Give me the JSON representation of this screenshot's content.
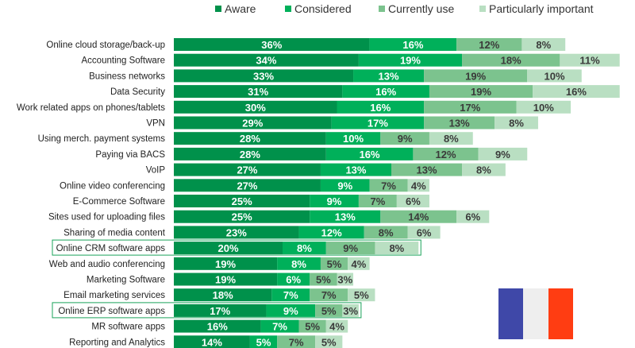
{
  "chart_data": {
    "type": "bar",
    "orientation": "horizontal",
    "stacked": true,
    "categories": [
      "Online cloud storage/back-up",
      "Accounting Software",
      "Business networks",
      "Data Security",
      "Work related apps on phones/tablets",
      "VPN",
      "Using merch. payment systems",
      "Paying via BACS",
      "VoIP",
      "Online video conferencing",
      "E-Commerce Software",
      "Sites used for uploading files",
      "Sharing of media content",
      "Online CRM software apps",
      "Web and audio conferencing",
      "Marketing Software",
      "Email marketing services",
      "Online ERP software apps",
      "MR software apps",
      "Reporting and Analytics"
    ],
    "series": [
      {
        "name": "Aware",
        "color": "#00914b",
        "values": [
          36,
          34,
          33,
          31,
          30,
          29,
          28,
          28,
          27,
          27,
          25,
          25,
          23,
          20,
          19,
          19,
          18,
          17,
          16,
          14
        ]
      },
      {
        "name": "Considered",
        "color": "#00b05a",
        "values": [
          16,
          19,
          13,
          16,
          16,
          17,
          10,
          16,
          13,
          9,
          9,
          13,
          12,
          8,
          8,
          6,
          7,
          9,
          7,
          5
        ]
      },
      {
        "name": "Currently use",
        "color": "#7cc38e",
        "values": [
          12,
          18,
          19,
          19,
          17,
          13,
          9,
          12,
          13,
          7,
          7,
          14,
          8,
          9,
          5,
          5,
          7,
          5,
          5,
          7
        ]
      },
      {
        "name": "Particularly important",
        "color": "#b9dfc2",
        "values": [
          8,
          11,
          10,
          16,
          10,
          8,
          8,
          9,
          8,
          4,
          6,
          6,
          6,
          8,
          4,
          3,
          5,
          3,
          4,
          5
        ]
      }
    ],
    "value_suffix": "%",
    "highlighted": [
      "Online CRM software apps",
      "Online ERP software apps"
    ],
    "legend_position": "top",
    "grid": false
  },
  "flag": {
    "colors": [
      "#3f48a8",
      "#eeeeee",
      "#ff3d12"
    ]
  }
}
